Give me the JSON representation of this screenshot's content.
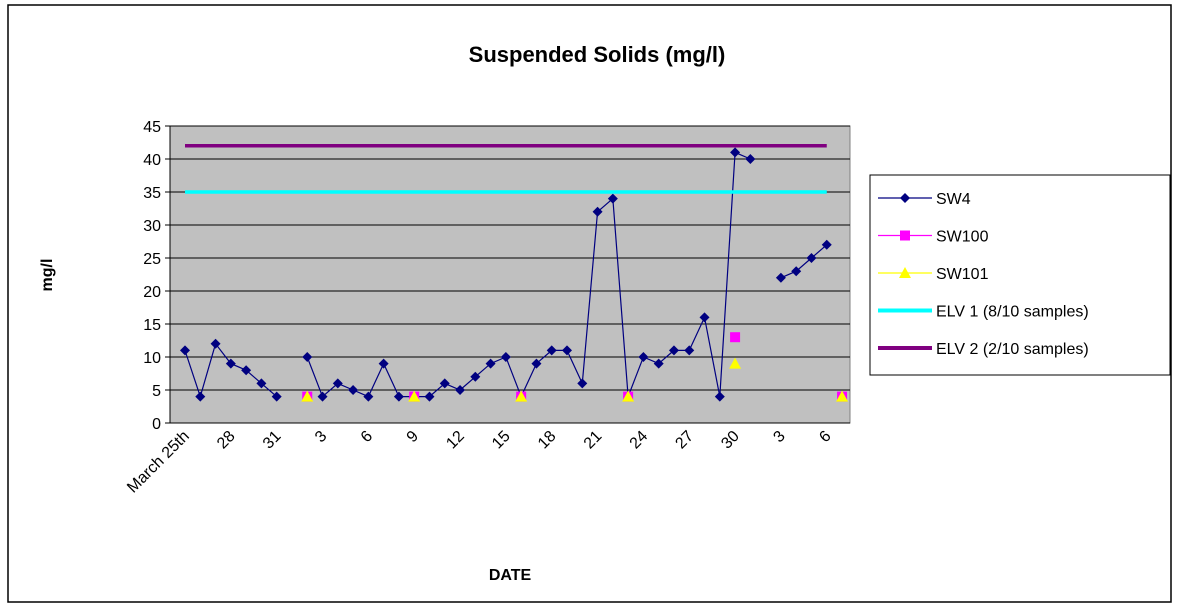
{
  "chart_data": {
    "type": "line",
    "title": "Suspended Solids (mg/l)",
    "x_label": "DATE",
    "y_label": "mg/l",
    "categories": [
      "March 25th",
      null,
      null,
      "28",
      null,
      null,
      "31",
      null,
      null,
      "3",
      null,
      null,
      "6",
      null,
      null,
      "9",
      null,
      null,
      "12",
      null,
      null,
      "15",
      null,
      null,
      "18",
      null,
      null,
      "21",
      null,
      null,
      "24",
      null,
      null,
      "27",
      null,
      null,
      "30",
      null,
      null,
      "3",
      null,
      null,
      "6",
      null
    ],
    "series": [
      {
        "name": "SW4",
        "color": "#000080",
        "marker": "diamond",
        "values": [
          11,
          4,
          12,
          9,
          8,
          6,
          4,
          null,
          10,
          4,
          6,
          5,
          4,
          9,
          4,
          4,
          4,
          6,
          5,
          7,
          9,
          10,
          4,
          9,
          11,
          11,
          6,
          32,
          34,
          4,
          10,
          9,
          11,
          11,
          16,
          4,
          41,
          40,
          null,
          22,
          23,
          25,
          27,
          null
        ]
      },
      {
        "name": "SW100",
        "color": "#ff00ff",
        "marker": "square",
        "values": [
          null,
          null,
          null,
          null,
          null,
          null,
          null,
          null,
          4,
          null,
          null,
          null,
          null,
          null,
          null,
          4,
          null,
          null,
          null,
          null,
          null,
          null,
          4,
          null,
          null,
          null,
          null,
          null,
          null,
          4,
          null,
          null,
          null,
          null,
          null,
          null,
          13,
          null,
          null,
          null,
          null,
          null,
          null,
          4
        ]
      },
      {
        "name": "SW101",
        "color": "#ffff00",
        "marker": "triangle",
        "values": [
          null,
          null,
          null,
          null,
          null,
          null,
          null,
          null,
          4,
          null,
          null,
          null,
          null,
          null,
          null,
          4,
          null,
          null,
          null,
          null,
          null,
          null,
          4,
          null,
          null,
          null,
          null,
          null,
          null,
          4,
          null,
          null,
          null,
          null,
          null,
          null,
          9,
          null,
          null,
          null,
          null,
          null,
          null,
          4
        ]
      },
      {
        "name": "ELV 1 (8/10 samples)",
        "color": "#00ffff",
        "values": [
          35,
          35,
          35,
          35,
          35,
          35,
          35,
          35,
          35,
          35,
          35,
          35,
          35,
          35,
          35,
          35,
          35,
          35,
          35,
          35,
          35,
          35,
          35,
          35,
          35,
          35,
          35,
          35,
          35,
          35,
          35,
          35,
          35,
          35,
          35,
          35,
          35,
          35,
          35,
          35,
          35,
          35,
          35,
          null
        ]
      },
      {
        "name": "ELV 2 (2/10 samples)",
        "color": "#800080",
        "values": [
          42,
          42,
          42,
          42,
          42,
          42,
          42,
          42,
          42,
          42,
          42,
          42,
          42,
          42,
          42,
          42,
          42,
          42,
          42,
          42,
          42,
          42,
          42,
          42,
          42,
          42,
          42,
          42,
          42,
          42,
          42,
          42,
          42,
          42,
          42,
          42,
          42,
          42,
          42,
          42,
          42,
          42,
          42,
          null
        ]
      }
    ],
    "ylim": [
      0,
      45
    ],
    "yticks": [
      0,
      5,
      10,
      15,
      20,
      25,
      30,
      35,
      40,
      45
    ],
    "grid": true,
    "legend": "right"
  }
}
